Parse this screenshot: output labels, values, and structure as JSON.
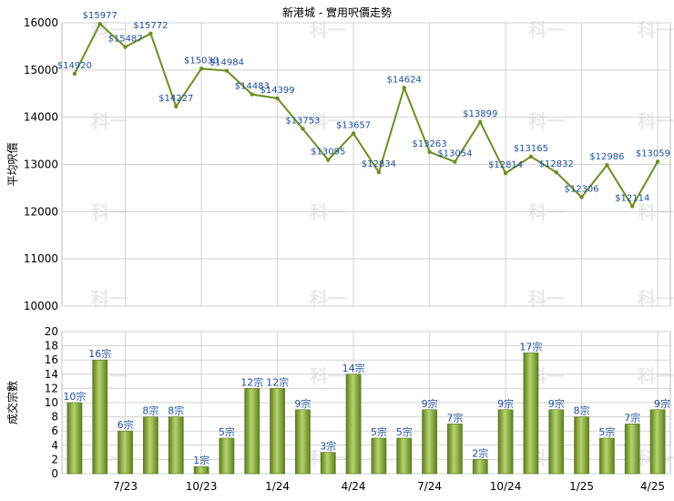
{
  "chart_data": [
    {
      "type": "line",
      "title": "新港城 - 實用呎價走勢",
      "xlabel": "",
      "ylabel": "平均呎價",
      "ylim": [
        10000,
        16000
      ],
      "yticks": [
        10000,
        11000,
        12000,
        13000,
        14000,
        15000,
        16000
      ],
      "grid": true,
      "legend": "none",
      "color": "#6b8e23",
      "x": [
        "",
        "",
        "7/23",
        "",
        "",
        "10/23",
        "",
        "",
        "1/24",
        "",
        "",
        "4/24",
        "",
        "",
        "7/24",
        "",
        "",
        "10/24",
        "",
        "",
        "1/25",
        "",
        "",
        "4/25"
      ],
      "values": [
        14920,
        15977,
        15487,
        15772,
        14227,
        15030,
        14984,
        14483,
        14399,
        13753,
        13095,
        13657,
        12834,
        14624,
        13263,
        13054,
        13899,
        12814,
        13165,
        12832,
        12306,
        12986,
        12114,
        13059
      ],
      "labels": [
        "$14920",
        "$15977",
        "$15487",
        "$15772",
        "$14227",
        "$15030",
        "$14984",
        "$14483",
        "$14399",
        "$13753",
        "$13095",
        "$13657",
        "$12834",
        "$14624",
        "$13263",
        "$13054",
        "$13899",
        "$12814",
        "$13165",
        "$12832",
        "$12306",
        "$12986",
        "$12114",
        "$13059"
      ]
    },
    {
      "type": "bar",
      "title": "",
      "xlabel": "",
      "ylabel": "成交宗數",
      "ylim": [
        0,
        20
      ],
      "yticks": [
        0,
        2,
        4,
        6,
        8,
        10,
        12,
        14,
        16,
        18,
        20
      ],
      "grid": true,
      "legend": "none",
      "color": "#7ea33a",
      "categories": [
        "",
        "",
        "7/23",
        "",
        "",
        "10/23",
        "",
        "",
        "1/24",
        "",
        "",
        "4/24",
        "",
        "",
        "7/24",
        "",
        "",
        "10/24",
        "",
        "",
        "1/25",
        "",
        "",
        "4/25"
      ],
      "values": [
        10,
        16,
        6,
        8,
        8,
        1,
        5,
        12,
        12,
        9,
        3,
        14,
        5,
        5,
        9,
        7,
        2,
        9,
        17,
        9,
        8,
        5,
        7,
        9
      ],
      "labels": [
        "10宗",
        "16宗",
        "6宗",
        "8宗",
        "8宗",
        "1宗",
        "5宗",
        "12宗",
        "12宗",
        "9宗",
        "3宗",
        "14宗",
        "5宗",
        "5宗",
        "9宗",
        "7宗",
        "2宗",
        "9宗",
        "17宗",
        "9宗",
        "8宗",
        "5宗",
        "7宗",
        "9宗"
      ]
    }
  ],
  "watermark": "科一"
}
